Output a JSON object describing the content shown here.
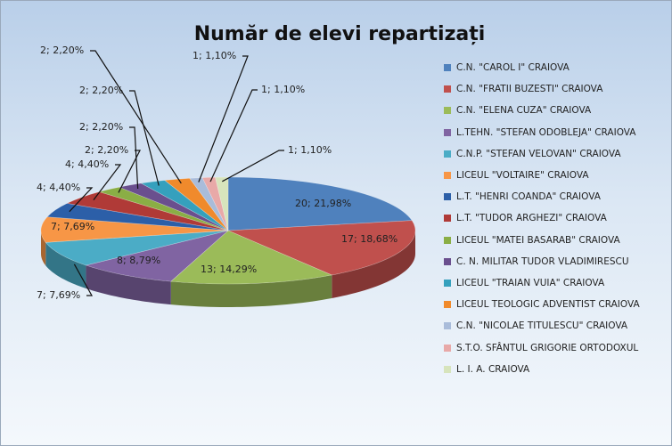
{
  "chart_data": {
    "type": "pie3d",
    "title": "Număr de elevi repartizați",
    "categories": [
      "C.N. \"CAROL I\" CRAIOVA",
      "C.N. \"FRATII BUZESTI\" CRAIOVA",
      "C.N. \"ELENA CUZA\" CRAIOVA",
      "L.TEHN. \"STEFAN ODOBLEJA\" CRAIOVA",
      "C.N.P. \"STEFAN VELOVAN\" CRAIOVA",
      "LICEUL \"VOLTAIRE\" CRAIOVA",
      "L.T. \"HENRI COANDA\" CRAIOVA",
      "L.T. \"TUDOR ARGHEZI\" CRAIOVA",
      "LICEUL \"MATEI BASARAB\" CRAIOVA",
      "C. N. MILITAR TUDOR VLADIMIRESCU",
      "LICEUL \"TRAIAN VUIA\" CRAIOVA",
      "LICEUL TEOLOGIC ADVENTIST CRAIOVA",
      "C.N. \"NICOLAE TITULESCU\" CRAIOVA",
      "S.T.O. SFÂNTUL GRIGORIE ORTODOXUL",
      "L. I. A. CRAIOVA"
    ],
    "values": [
      20,
      17,
      13,
      8,
      7,
      7,
      4,
      4,
      2,
      2,
      2,
      2,
      1,
      1,
      1
    ],
    "value_labels": [
      "20; 21,98%",
      "17; 18,68%",
      "13; 14,29%",
      "8; 8,79%",
      "7; 7,69%",
      "7; 7,69%",
      "4; 4,40%",
      "4; 4,40%",
      "2; 2,20%",
      "2; 2,20%",
      "2; 2,20%",
      "2; 2,20%",
      "1; 1,10%",
      "1; 1,10%",
      "1; 1,10%"
    ],
    "colors": [
      "#4f81bd",
      "#c0504d",
      "#9bbb59",
      "#8064a2",
      "#4bacc6",
      "#f79646",
      "#2c5fa8",
      "#b03a37",
      "#8aae45",
      "#6a4f8e",
      "#35a0bd",
      "#f08a2c",
      "#a9bcda",
      "#e8a9a8",
      "#d7e4bc"
    ],
    "legend": "right"
  }
}
